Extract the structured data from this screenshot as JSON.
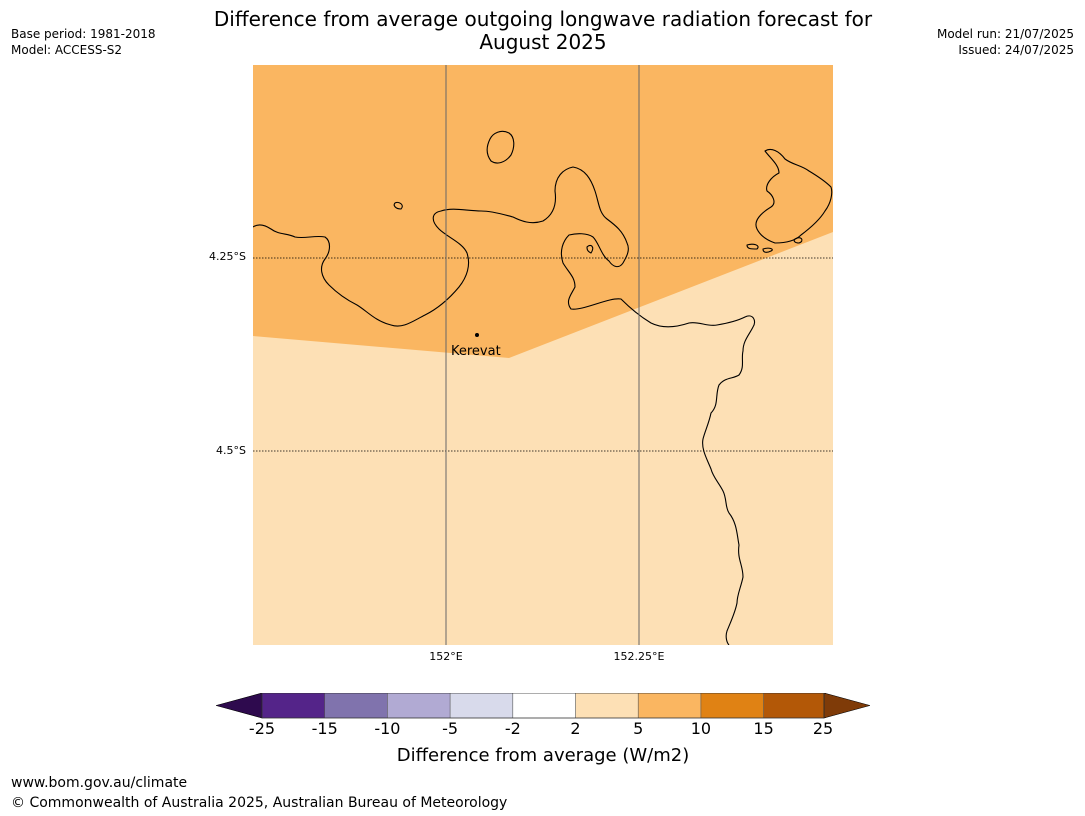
{
  "header": {
    "title_line1": "Difference from average outgoing longwave radiation forecast for",
    "title_line2": "August 2025",
    "base_period": "Base period: 1981-2018",
    "model": "Model: ACCESS-S2",
    "model_run": "Model run: 21/07/2025",
    "issued": "Issued: 24/07/2025"
  },
  "map": {
    "lat_labels": [
      "4.25°S",
      "4.5°S"
    ],
    "lon_labels": [
      "152°E",
      "152.25°E"
    ],
    "place_label": "Kerevat",
    "fill_colors": {
      "upper": "#fab661",
      "lower": "#fde0b5"
    },
    "coastline_color": "#000000"
  },
  "colorbar": {
    "ticks": [
      "-25",
      "-15",
      "-10",
      "-5",
      "-2",
      "2",
      "5",
      "10",
      "15",
      "25"
    ],
    "colors": [
      "#2e0a4e",
      "#542489",
      "#8073ad",
      "#b1aad3",
      "#d8daeb",
      "#ffffff",
      "#fde0b5",
      "#fab661",
      "#e08214",
      "#b35807",
      "#7f3b08"
    ],
    "label": "Difference from average (W/m2)"
  },
  "footer": {
    "website": "www.bom.gov.au/climate",
    "copyright": "© Commonwealth of Australia 2025, Australian Bureau of Meteorology"
  }
}
